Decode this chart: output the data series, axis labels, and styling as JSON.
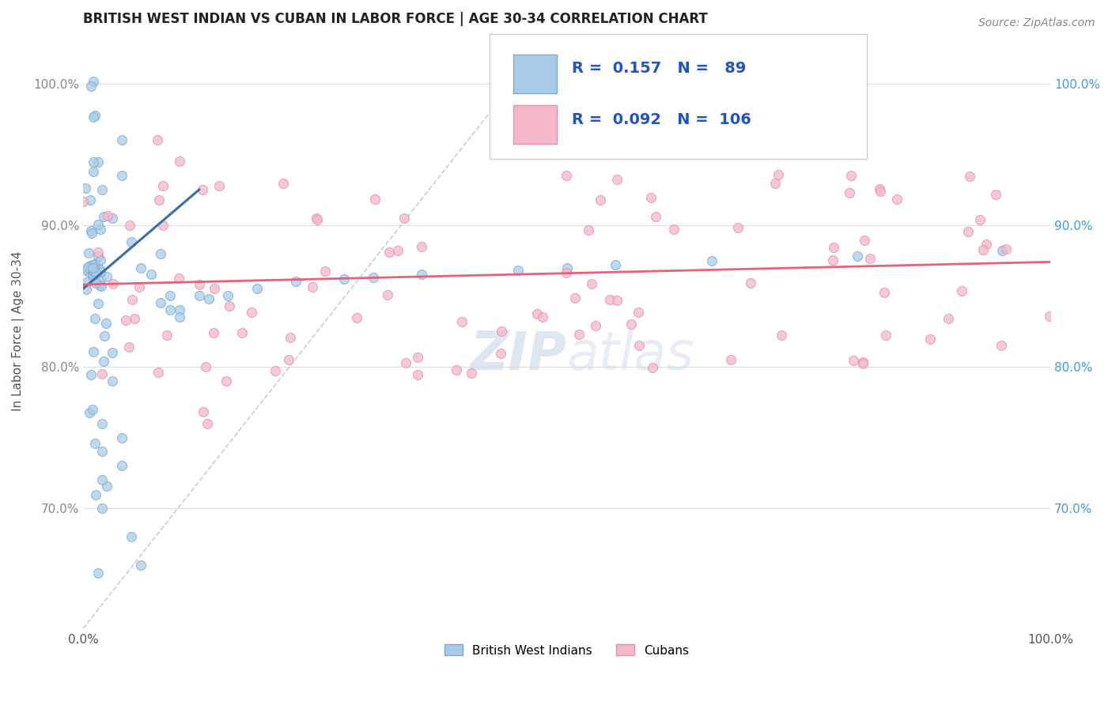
{
  "title": "BRITISH WEST INDIAN VS CUBAN IN LABOR FORCE | AGE 30-34 CORRELATION CHART",
  "source_text": "Source: ZipAtlas.com",
  "ylabel": "In Labor Force | Age 30-34",
  "xlim": [
    0.0,
    1.0
  ],
  "ylim": [
    0.615,
    1.035
  ],
  "y_ticks": [
    0.7,
    0.8,
    0.9,
    1.0
  ],
  "y_tick_labels": [
    "70.0%",
    "80.0%",
    "90.0%",
    "100.0%"
  ],
  "blue_R": 0.157,
  "blue_N": 89,
  "pink_R": 0.092,
  "pink_N": 106,
  "blue_color": "#a8cce8",
  "blue_edge_color": "#7aabce",
  "pink_color": "#f4b8c8",
  "pink_edge_color": "#e890a8",
  "blue_trend_color": "#3a6ea8",
  "pink_trend_color": "#e8607a",
  "ref_line_color": "#b8ccdd",
  "watermark_color": "#c8d8e8",
  "legend_label_blue": "British West Indians",
  "legend_label_pink": "Cubans",
  "blue_trend_x0": 0.0,
  "blue_trend_y0": 0.855,
  "blue_trend_x1": 0.12,
  "blue_trend_y1": 0.925,
  "pink_trend_x0": 0.0,
  "pink_trend_y0": 0.858,
  "pink_trend_x1": 1.0,
  "pink_trend_y1": 0.874
}
